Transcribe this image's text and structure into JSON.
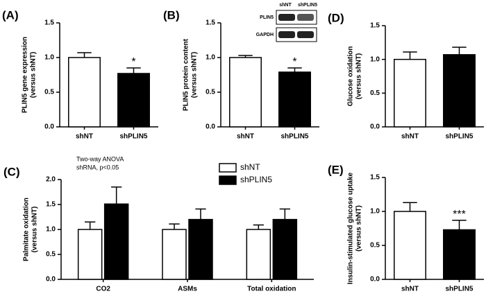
{
  "chart_data": [
    {
      "type": "bar",
      "label": "(A)",
      "ylabel": [
        "PLIN5 gene expression",
        "(versus shNT)"
      ],
      "categories": [
        "shNT",
        "shPLIN5"
      ],
      "values": [
        1.0,
        0.77
      ],
      "errors": [
        0.07,
        0.08
      ],
      "colors": [
        "#ffffff",
        "#000000"
      ],
      "annotations": [
        null,
        "*"
      ],
      "ylim": [
        0,
        1.5
      ],
      "yticks": [
        {
          "value": 0,
          "label": "0.0"
        },
        {
          "value": 0.5,
          "label": "0.5"
        },
        {
          "value": 1,
          "label": "1.0"
        },
        {
          "value": 1.5,
          "label": "1.5"
        }
      ]
    },
    {
      "type": "bar",
      "label": "(B)",
      "ylabel": [
        "PLIN5 protein content",
        "(versus shNT)"
      ],
      "categories": [
        "shNT",
        "shPLIN5"
      ],
      "values": [
        1.0,
        0.79
      ],
      "errors": [
        0.03,
        0.06
      ],
      "colors": [
        "#ffffff",
        "#000000"
      ],
      "annotations": [
        null,
        "*"
      ],
      "blot": {
        "lanes": [
          "shNT",
          "shPLIN5"
        ],
        "rows": [
          "PLIN5",
          "GAPDH"
        ]
      },
      "ylim": [
        0,
        1.5
      ],
      "yticks": [
        {
          "value": 0,
          "label": "0.0"
        },
        {
          "value": 0.5,
          "label": "0.5"
        },
        {
          "value": 1,
          "label": "1.0"
        },
        {
          "value": 1.5,
          "label": "1.5"
        }
      ]
    },
    {
      "type": "bar",
      "label": "(D)",
      "ylabel": [
        "Glucose oxidation",
        "(versus shNT)"
      ],
      "categories": [
        "shNT",
        "shPLIN5"
      ],
      "values": [
        1.0,
        1.07
      ],
      "errors": [
        0.11,
        0.11
      ],
      "colors": [
        "#ffffff",
        "#000000"
      ],
      "annotations": [
        null,
        null
      ],
      "ylim": [
        0,
        1.5
      ],
      "yticks": [
        {
          "value": 0,
          "label": "0.0"
        },
        {
          "value": 0.5,
          "label": "0.5"
        },
        {
          "value": 1,
          "label": "1.0"
        },
        {
          "value": 1.5,
          "label": "1.5"
        }
      ]
    },
    {
      "type": "grouped_bar",
      "label": "(C)",
      "ylabel": [
        "Palmitate oxidation",
        "(versus shNT)"
      ],
      "note": [
        "Two-way ANOVA",
        "shRNA, p<0.05"
      ],
      "categories": [
        "CO2",
        "ASMs",
        "Total oxidation"
      ],
      "series": [
        {
          "name": "shNT",
          "color": "#ffffff",
          "values": [
            1.0,
            1.0,
            1.0
          ],
          "errors": [
            0.15,
            0.11,
            0.09
          ]
        },
        {
          "name": "shPLIN5",
          "color": "#000000",
          "values": [
            1.51,
            1.2,
            1.2
          ],
          "errors": [
            0.34,
            0.21,
            0.21
          ]
        }
      ],
      "ylim": [
        0,
        2
      ],
      "yticks": [
        {
          "value": 0,
          "label": "0.0"
        },
        {
          "value": 0.5,
          "label": "0.5"
        },
        {
          "value": 1,
          "label": "1.0"
        },
        {
          "value": 1.5,
          "label": "1.5"
        },
        {
          "value": 2,
          "label": "2.0"
        }
      ]
    },
    {
      "type": "bar",
      "label": "(E)",
      "ylabel": [
        "Insulin-stimulated glucose uptake",
        "(versus shNT)"
      ],
      "categories": [
        "shNT",
        "shPLIN5"
      ],
      "values": [
        1.0,
        0.73
      ],
      "errors": [
        0.13,
        0.14
      ],
      "colors": [
        "#ffffff",
        "#000000"
      ],
      "annotations": [
        null,
        "***"
      ],
      "ylim": [
        0,
        1.5
      ],
      "yticks": [
        {
          "value": 0,
          "label": "0.0"
        },
        {
          "value": 0.5,
          "label": "0.5"
        },
        {
          "value": 1,
          "label": "1.0"
        },
        {
          "value": 1.5,
          "label": "1.5"
        }
      ]
    }
  ]
}
